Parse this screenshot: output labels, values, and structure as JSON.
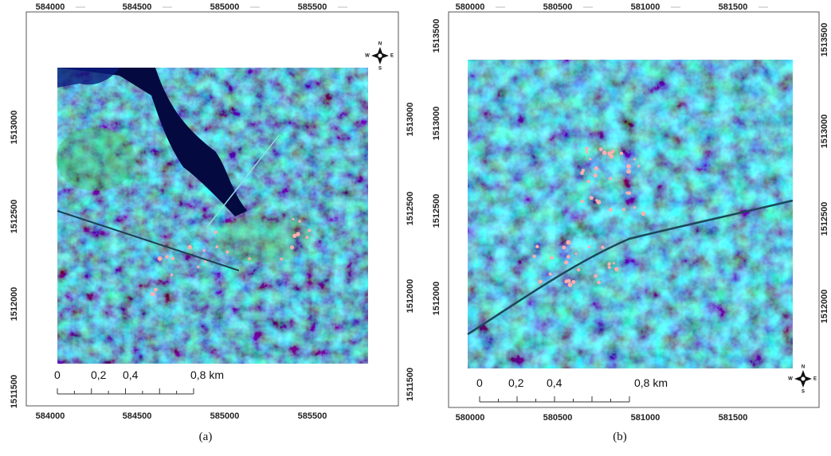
{
  "panels": [
    {
      "caption": "(a)",
      "top_labels": [
        "584000",
        "584500",
        "585000",
        "585500"
      ],
      "bottom_labels": [
        "584000",
        "584500",
        "585000",
        "585500"
      ],
      "left_labels": [
        "1513000",
        "1512500",
        "1512000",
        "1511500"
      ],
      "right_labels": [
        "1513000",
        "1512500",
        "1512000",
        "1511500"
      ],
      "scale_labels": [
        "0",
        "0,2",
        "0,4",
        "0,8 km"
      ],
      "compass": {
        "n": "N",
        "s": "S",
        "e": "E",
        "w": "W"
      }
    },
    {
      "caption": "(b)",
      "top_labels": [
        "580000",
        "580500",
        "581000",
        "581500"
      ],
      "bottom_labels": [
        "580000",
        "580500",
        "581000",
        "581500"
      ],
      "left_labels": [
        "1513500",
        "1513000",
        "1512500",
        "1512000"
      ],
      "right_labels": [
        "1513500",
        "1513000",
        "1512500",
        "1512000"
      ],
      "scale_labels": [
        "0",
        "0,2",
        "0,4",
        "0,8 km"
      ],
      "compass": {
        "n": "N",
        "s": "S",
        "e": "E",
        "w": "W"
      }
    }
  ]
}
